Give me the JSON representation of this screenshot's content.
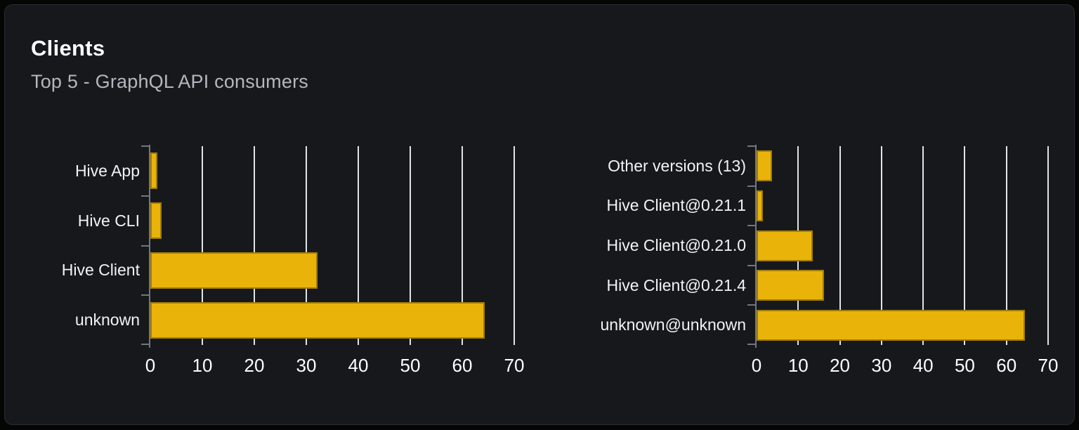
{
  "card": {
    "title": "Clients",
    "subtitle": "Top 5 - GraphQL API consumers"
  },
  "colors": {
    "page_background": "#050506",
    "card_background": "#16181c",
    "card_border": "#282b31",
    "title": "#ffffff",
    "subtitle": "#b4b8be",
    "bar": "#e9b30a",
    "grid_line": "#e0e4ea",
    "axis_line": "#72767d"
  },
  "chart_data": [
    {
      "type": "bar",
      "orientation": "horizontal",
      "title": "Clients by name",
      "categories": [
        "Hive App",
        "Hive CLI",
        "Hive Client",
        "unknown"
      ],
      "values": [
        1.3,
        2.1,
        32.1,
        64.3
      ],
      "xlabel": "",
      "ylabel": "",
      "xlim": [
        0,
        70
      ],
      "xticks": [
        0,
        10,
        20,
        30,
        40,
        50,
        60,
        70
      ],
      "grid": true,
      "legend": "none",
      "bar_color": "#e9b30a"
    },
    {
      "type": "bar",
      "orientation": "horizontal",
      "title": "Clients by version",
      "categories": [
        "Other versions (13)",
        "Hive Client@0.21.1",
        "Hive Client@0.21.0",
        "Hive Client@0.21.4",
        "unknown@unknown"
      ],
      "values": [
        3.7,
        1.6,
        13.5,
        16.2,
        64.4
      ],
      "xlabel": "",
      "ylabel": "",
      "xlim": [
        0,
        70
      ],
      "xticks": [
        0,
        10,
        20,
        30,
        40,
        50,
        60,
        70
      ],
      "grid": true,
      "legend": "none",
      "bar_color": "#e9b30a"
    }
  ]
}
